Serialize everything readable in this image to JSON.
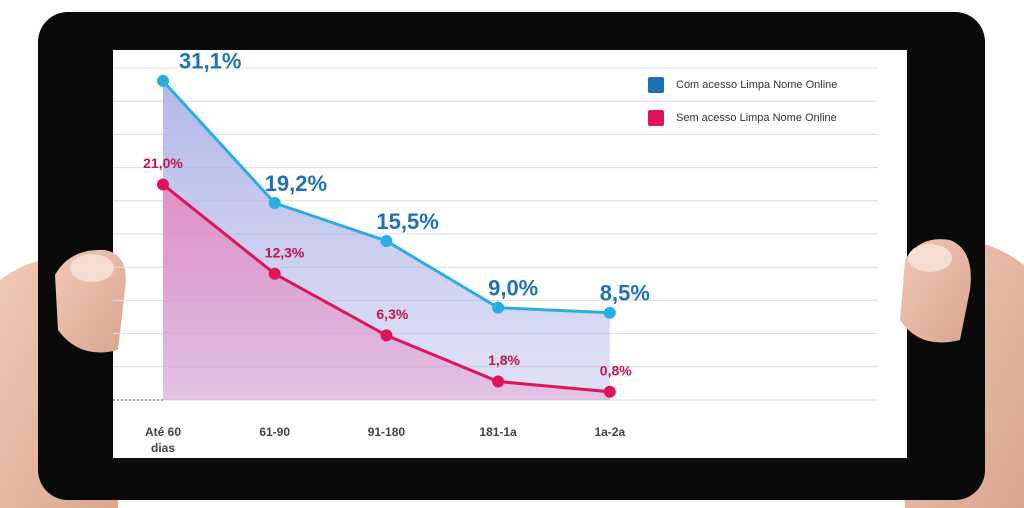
{
  "chart_data": {
    "type": "line",
    "categories": [
      "Até 60 dias",
      "61-90",
      "91-180",
      "181-1a",
      "1a-2a"
    ],
    "series": [
      {
        "name": "Com acesso Limpa Nome Online",
        "color": "#2aaee0",
        "legend_color": "#1f6fb5",
        "fill": "#aab0e6",
        "values": [
          31.1,
          19.2,
          15.5,
          9.0,
          8.5
        ],
        "value_labels": [
          "31,1%",
          "19,2%",
          "15,5%",
          "9,0%",
          "8,5%"
        ]
      },
      {
        "name": "Sem acesso Limpa Nome Online",
        "color": "#e0145a",
        "legend_color": "#e0145a",
        "fill": "#e68cc4",
        "values": [
          21.0,
          12.3,
          6.3,
          1.8,
          0.8
        ],
        "value_labels": [
          "21,0%",
          "12,3%",
          "6,3%",
          "1,8%",
          "0,8%"
        ]
      }
    ],
    "ylim": [
      0,
      32
    ],
    "grid": true,
    "legend": "top-right"
  }
}
